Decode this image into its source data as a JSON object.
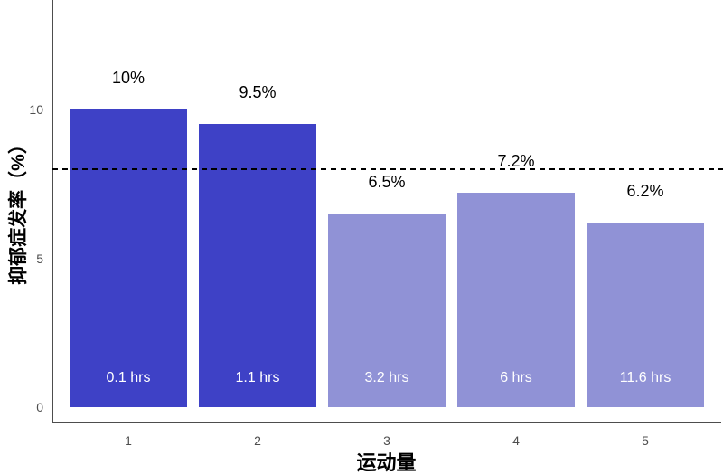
{
  "chart_data": {
    "type": "bar",
    "title": "",
    "xlabel": "运动量",
    "ylabel": "抑郁症发率（%）",
    "categories": [
      "1",
      "2",
      "3",
      "4",
      "5"
    ],
    "values": [
      10,
      9.5,
      6.5,
      7.2,
      6.2
    ],
    "bar_value_labels": [
      "10%",
      "9.5%",
      "6.5%",
      "7.2%",
      "6.2%"
    ],
    "bar_inner_labels": [
      "0.1 hrs",
      "1.1 hrs",
      "3.2 hrs",
      "6 hrs",
      "11.6 hrs"
    ],
    "bar_colors": [
      "#3E41C6",
      "#3E41C6",
      "#9092D6",
      "#9092D6",
      "#9092D6"
    ],
    "yticks": [
      0,
      5,
      10
    ],
    "ytick_labels": [
      "0",
      "5",
      "10"
    ],
    "ylim": [
      0,
      13.7
    ],
    "grid": false,
    "legend": false,
    "reference_line": {
      "value": 8,
      "style": "dashed",
      "color": "#000000"
    },
    "colors": {
      "dark_bar": "#3E41C6",
      "light_bar": "#9092D6",
      "axis_line": "#4d4d4d",
      "tick_text": "#4d4d4d",
      "value_label_text": "#000000",
      "inner_label_text": "#ffffff"
    }
  }
}
